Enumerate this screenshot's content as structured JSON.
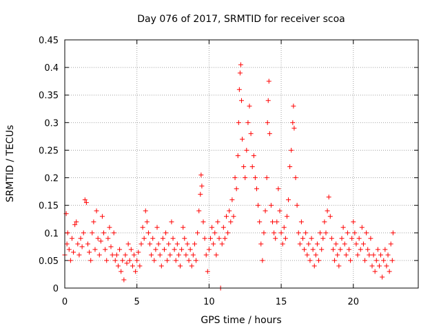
{
  "chart_data": {
    "type": "scatter",
    "title": "Day 076 of 2017, SRMTID for receiver scoa",
    "xlabel": "GPS time / hours",
    "ylabel": "SRMTID / TECUs",
    "xlim": [
      0,
      24.5
    ],
    "ylim": [
      0,
      0.45
    ],
    "x_ticks": [
      0,
      5,
      10,
      15,
      20
    ],
    "x_tick_labels": [
      "0",
      "5",
      "10",
      "15",
      "20"
    ],
    "y_ticks": [
      0,
      0.05,
      0.1,
      0.15,
      0.2,
      0.25,
      0.3,
      0.35,
      0.4,
      0.45
    ],
    "y_tick_labels": [
      "0",
      "0.05",
      "0.1",
      "0.15",
      "0.2",
      "0.25",
      "0.3",
      "0.35",
      "0.4",
      "0.45"
    ],
    "grid": true,
    "marker": "plus",
    "series": [
      {
        "name": "SRMTID",
        "color": "#ff0000",
        "points": [
          [
            0.0,
            0.06
          ],
          [
            0.1,
            0.135
          ],
          [
            0.15,
            0.08
          ],
          [
            0.2,
            0.1
          ],
          [
            0.3,
            0.07
          ],
          [
            0.4,
            0.05
          ],
          [
            0.5,
            0.09
          ],
          [
            0.6,
            0.065
          ],
          [
            0.7,
            0.115
          ],
          [
            0.8,
            0.12
          ],
          [
            0.9,
            0.08
          ],
          [
            1.0,
            0.06
          ],
          [
            1.1,
            0.09
          ],
          [
            1.2,
            0.075
          ],
          [
            1.3,
            0.1
          ],
          [
            1.4,
            0.16
          ],
          [
            1.5,
            0.155
          ],
          [
            1.6,
            0.08
          ],
          [
            1.7,
            0.065
          ],
          [
            1.8,
            0.05
          ],
          [
            1.9,
            0.1
          ],
          [
            2.0,
            0.12
          ],
          [
            2.1,
            0.07
          ],
          [
            2.2,
            0.14
          ],
          [
            2.3,
            0.09
          ],
          [
            2.4,
            0.06
          ],
          [
            2.5,
            0.085
          ],
          [
            2.6,
            0.13
          ],
          [
            2.7,
            0.1
          ],
          [
            2.8,
            0.07
          ],
          [
            2.9,
            0.05
          ],
          [
            3.0,
            0.09
          ],
          [
            3.1,
            0.11
          ],
          [
            3.2,
            0.075
          ],
          [
            3.3,
            0.06
          ],
          [
            3.4,
            0.1
          ],
          [
            3.5,
            0.05
          ],
          [
            3.6,
            0.06
          ],
          [
            3.7,
            0.04
          ],
          [
            3.8,
            0.07
          ],
          [
            3.9,
            0.03
          ],
          [
            4.0,
            0.05
          ],
          [
            4.1,
            0.015
          ],
          [
            4.2,
            0.06
          ],
          [
            4.3,
            0.045
          ],
          [
            4.4,
            0.08
          ],
          [
            4.5,
            0.05
          ],
          [
            4.6,
            0.07
          ],
          [
            4.7,
            0.04
          ],
          [
            4.8,
            0.06
          ],
          [
            4.9,
            0.03
          ],
          [
            5.0,
            0.05
          ],
          [
            5.1,
            0.065
          ],
          [
            5.2,
            0.04
          ],
          [
            5.3,
            0.08
          ],
          [
            5.4,
            0.11
          ],
          [
            5.5,
            0.09
          ],
          [
            5.6,
            0.14
          ],
          [
            5.7,
            0.12
          ],
          [
            5.8,
            0.1
          ],
          [
            5.9,
            0.08
          ],
          [
            6.0,
            0.06
          ],
          [
            6.1,
            0.09
          ],
          [
            6.2,
            0.05
          ],
          [
            6.3,
            0.07
          ],
          [
            6.4,
            0.11
          ],
          [
            6.5,
            0.08
          ],
          [
            6.6,
            0.06
          ],
          [
            6.7,
            0.04
          ],
          [
            6.8,
            0.09
          ],
          [
            6.9,
            0.07
          ],
          [
            7.0,
            0.1
          ],
          [
            7.1,
            0.05
          ],
          [
            7.2,
            0.08
          ],
          [
            7.3,
            0.06
          ],
          [
            7.4,
            0.12
          ],
          [
            7.5,
            0.09
          ],
          [
            7.6,
            0.07
          ],
          [
            7.7,
            0.05
          ],
          [
            7.8,
            0.08
          ],
          [
            7.9,
            0.06
          ],
          [
            8.0,
            0.04
          ],
          [
            8.1,
            0.07
          ],
          [
            8.2,
            0.11
          ],
          [
            8.3,
            0.09
          ],
          [
            8.4,
            0.06
          ],
          [
            8.5,
            0.08
          ],
          [
            8.6,
            0.05
          ],
          [
            8.7,
            0.07
          ],
          [
            8.8,
            0.04
          ],
          [
            8.9,
            0.06
          ],
          [
            9.0,
            0.08
          ],
          [
            9.1,
            0.05
          ],
          [
            9.2,
            0.1
          ],
          [
            9.3,
            0.14
          ],
          [
            9.4,
            0.17
          ],
          [
            9.45,
            0.205
          ],
          [
            9.5,
            0.185
          ],
          [
            9.6,
            0.12
          ],
          [
            9.7,
            0.09
          ],
          [
            9.8,
            0.06
          ],
          [
            9.9,
            0.03
          ],
          [
            10.0,
            0.07
          ],
          [
            10.1,
            0.09
          ],
          [
            10.2,
            0.11
          ],
          [
            10.3,
            0.08
          ],
          [
            10.4,
            0.1
          ],
          [
            10.5,
            0.06
          ],
          [
            10.6,
            0.12
          ],
          [
            10.7,
            0.09
          ],
          [
            10.8,
            0.0
          ],
          [
            10.9,
            0.08
          ],
          [
            11.0,
            0.11
          ],
          [
            11.1,
            0.09
          ],
          [
            11.2,
            0.13
          ],
          [
            11.3,
            0.1
          ],
          [
            11.4,
            0.14
          ],
          [
            11.5,
            0.12
          ],
          [
            11.6,
            0.16
          ],
          [
            11.7,
            0.13
          ],
          [
            11.8,
            0.2
          ],
          [
            11.9,
            0.18
          ],
          [
            12.0,
            0.24
          ],
          [
            12.05,
            0.3
          ],
          [
            12.1,
            0.36
          ],
          [
            12.15,
            0.39
          ],
          [
            12.2,
            0.405
          ],
          [
            12.25,
            0.34
          ],
          [
            12.3,
            0.27
          ],
          [
            12.4,
            0.22
          ],
          [
            12.5,
            0.2
          ],
          [
            12.6,
            0.25
          ],
          [
            12.7,
            0.3
          ],
          [
            12.8,
            0.33
          ],
          [
            12.9,
            0.28
          ],
          [
            13.0,
            0.22
          ],
          [
            13.1,
            0.24
          ],
          [
            13.2,
            0.2
          ],
          [
            13.3,
            0.18
          ],
          [
            13.4,
            0.15
          ],
          [
            13.5,
            0.12
          ],
          [
            13.6,
            0.08
          ],
          [
            13.7,
            0.05
          ],
          [
            13.8,
            0.1
          ],
          [
            13.9,
            0.14
          ],
          [
            14.0,
            0.2
          ],
          [
            14.05,
            0.3
          ],
          [
            14.1,
            0.34
          ],
          [
            14.15,
            0.375
          ],
          [
            14.2,
            0.28
          ],
          [
            14.3,
            0.15
          ],
          [
            14.4,
            0.12
          ],
          [
            14.5,
            0.1
          ],
          [
            14.6,
            0.09
          ],
          [
            14.7,
            0.12
          ],
          [
            14.8,
            0.18
          ],
          [
            14.9,
            0.14
          ],
          [
            15.0,
            0.1
          ],
          [
            15.1,
            0.08
          ],
          [
            15.2,
            0.11
          ],
          [
            15.3,
            0.09
          ],
          [
            15.4,
            0.13
          ],
          [
            15.5,
            0.16
          ],
          [
            15.6,
            0.22
          ],
          [
            15.7,
            0.25
          ],
          [
            15.8,
            0.3
          ],
          [
            15.85,
            0.33
          ],
          [
            15.9,
            0.29
          ],
          [
            16.0,
            0.2
          ],
          [
            16.1,
            0.15
          ],
          [
            16.2,
            0.1
          ],
          [
            16.3,
            0.08
          ],
          [
            16.4,
            0.12
          ],
          [
            16.5,
            0.09
          ],
          [
            16.6,
            0.07
          ],
          [
            16.7,
            0.1
          ],
          [
            16.8,
            0.06
          ],
          [
            16.9,
            0.08
          ],
          [
            17.0,
            0.05
          ],
          [
            17.1,
            0.09
          ],
          [
            17.2,
            0.07
          ],
          [
            17.3,
            0.04
          ],
          [
            17.4,
            0.06
          ],
          [
            17.5,
            0.08
          ],
          [
            17.6,
            0.05
          ],
          [
            17.7,
            0.1
          ],
          [
            17.8,
            0.07
          ],
          [
            17.9,
            0.09
          ],
          [
            18.0,
            0.12
          ],
          [
            18.1,
            0.1
          ],
          [
            18.2,
            0.14
          ],
          [
            18.3,
            0.165
          ],
          [
            18.4,
            0.13
          ],
          [
            18.5,
            0.09
          ],
          [
            18.6,
            0.07
          ],
          [
            18.7,
            0.05
          ],
          [
            18.8,
            0.08
          ],
          [
            18.9,
            0.06
          ],
          [
            19.0,
            0.04
          ],
          [
            19.1,
            0.07
          ],
          [
            19.2,
            0.09
          ],
          [
            19.3,
            0.11
          ],
          [
            19.4,
            0.08
          ],
          [
            19.5,
            0.06
          ],
          [
            19.6,
            0.1
          ],
          [
            19.7,
            0.07
          ],
          [
            19.8,
            0.05
          ],
          [
            19.9,
            0.09
          ],
          [
            20.0,
            0.12
          ],
          [
            20.1,
            0.1
          ],
          [
            20.2,
            0.08
          ],
          [
            20.3,
            0.06
          ],
          [
            20.4,
            0.09
          ],
          [
            20.5,
            0.07
          ],
          [
            20.6,
            0.11
          ],
          [
            20.7,
            0.08
          ],
          [
            20.8,
            0.05
          ],
          [
            20.9,
            0.1
          ],
          [
            21.0,
            0.07
          ],
          [
            21.1,
            0.06
          ],
          [
            21.2,
            0.09
          ],
          [
            21.3,
            0.04
          ],
          [
            21.4,
            0.06
          ],
          [
            21.5,
            0.03
          ],
          [
            21.6,
            0.05
          ],
          [
            21.7,
            0.07
          ],
          [
            21.8,
            0.04
          ],
          [
            21.9,
            0.06
          ],
          [
            22.0,
            0.02
          ],
          [
            22.1,
            0.05
          ],
          [
            22.2,
            0.07
          ],
          [
            22.3,
            0.04
          ],
          [
            22.4,
            0.06
          ],
          [
            22.5,
            0.03
          ],
          [
            22.6,
            0.08
          ],
          [
            22.7,
            0.05
          ],
          [
            22.75,
            0.1
          ]
        ]
      }
    ]
  }
}
